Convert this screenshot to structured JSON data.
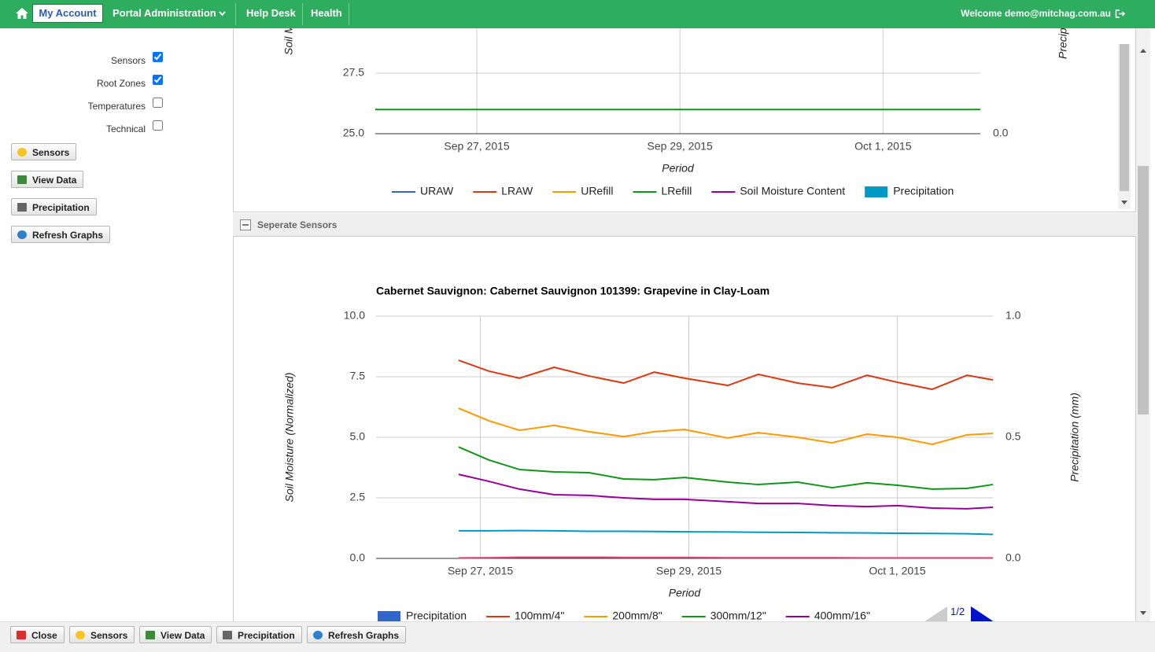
{
  "nav": {
    "items": [
      "My Account",
      "Portal Administration",
      "Help Desk",
      "Health"
    ],
    "welcome": "Welcome demo@mitchag.com.au"
  },
  "sidebar": {
    "options": [
      {
        "label": "Sensors",
        "checked": true
      },
      {
        "label": "Root Zones",
        "checked": true
      },
      {
        "label": "Temperatures",
        "checked": false
      },
      {
        "label": "Technical",
        "checked": false
      }
    ],
    "buttons": [
      "Sensors",
      "View Data",
      "Precipitation",
      "Refresh Graphs"
    ]
  },
  "section_title": "Seperate Sensors",
  "pager": "1/2",
  "toolbar": [
    "Close",
    "Sensors",
    "View Data",
    "Precipitation",
    "Refresh Graphs"
  ],
  "chart_data": [
    {
      "type": "line",
      "x_label": "Period",
      "y_label": "Soil Moisture (Normalized)",
      "y2_label": "Precipitation (mm)",
      "xlim": [
        "2015-09-26T00:00",
        "2015-10-01T23:00"
      ],
      "xticks": [
        {
          "value": "2015-09-27T00:00",
          "label": "Sep 27, 2015"
        },
        {
          "value": "2015-09-29T00:00",
          "label": "Sep 29, 2015"
        },
        {
          "value": "2015-10-01T00:00",
          "label": "Oct 1, 2015"
        }
      ],
      "ylim": [
        25,
        30
      ],
      "yticks": [
        {
          "value": 25,
          "label": "25.0"
        },
        27.5
      ],
      "y2lim": [
        0,
        1
      ],
      "y2ticks": [
        {
          "value": 0,
          "label": "0.0"
        }
      ],
      "grid": true,
      "series": [
        {
          "name": "URAW",
          "color": "#3366cc"
        },
        {
          "name": "LRAW",
          "color": "#dc3912"
        },
        {
          "name": "URefill",
          "color": "#ff9900"
        },
        {
          "name": "LRefill",
          "color": "#109618",
          "x": [
            "2015-09-26T00:00",
            "2015-10-01T23:00"
          ],
          "values": [
            26,
            26
          ]
        },
        {
          "name": "Soil Moisture Content",
          "color": "#990099"
        },
        {
          "name": "Precipitation",
          "color": "#0099c6",
          "type": "bar",
          "axis": "y2"
        }
      ]
    },
    {
      "type": "line",
      "title": "Cabernet Sauvignon: Cabernet Sauvignon 101399: Grapevine in Clay-Loam",
      "x_label": "Period",
      "y_label": "Soil Moisture (Normalized)",
      "y2_label": "Precipitation (mm)",
      "xlim": [
        "2015-09-26T00:00",
        "2015-10-01T22:00"
      ],
      "xticks": [
        {
          "value": "2015-09-27T00:00",
          "label": "Sep 27, 2015"
        },
        {
          "value": "2015-09-29T00:00",
          "label": "Sep 29, 2015"
        },
        {
          "value": "2015-10-01T00:00",
          "label": "Oct 1, 2015"
        }
      ],
      "ylim": [
        0,
        10
      ],
      "yticks": [
        {
          "value": 0,
          "label": "0.0"
        },
        2.5,
        {
          "value": 5,
          "label": "5.0"
        },
        7.5,
        {
          "value": 10,
          "label": "10.0"
        }
      ],
      "y2lim": [
        0,
        1
      ],
      "y2ticks": [
        {
          "value": 0,
          "label": "0.0"
        },
        0.5,
        {
          "value": 1,
          "label": "1.0"
        }
      ],
      "grid": true,
      "x": [
        "2015-09-26T19:00",
        "2015-09-27T02:00",
        "2015-09-27T09:00",
        "2015-09-27T17:00",
        "2015-09-28T01:00",
        "2015-09-28T09:00",
        "2015-09-28T16:00",
        "2015-09-28T23:00",
        "2015-09-29T09:00",
        "2015-09-29T16:00",
        "2015-09-30T01:00",
        "2015-09-30T09:00",
        "2015-09-30T17:00",
        "2015-10-01T00:00",
        "2015-10-01T08:00",
        "2015-10-01T16:00",
        "2015-10-01T22:00"
      ],
      "series": [
        {
          "name": "Precipitation",
          "color": "#3366cc",
          "type": "bar",
          "axis": "y2"
        },
        {
          "name": "100mm/4\"",
          "color": "#dc3912",
          "values": [
            8.18,
            7.73,
            7.44,
            7.89,
            7.53,
            7.24,
            7.69,
            7.44,
            7.14,
            7.6,
            7.24,
            7.05,
            7.56,
            7.27,
            6.98,
            7.56,
            7.37
          ]
        },
        {
          "name": "200mm/8\"",
          "color": "#ff9900",
          "values": [
            6.2,
            5.68,
            5.29,
            5.49,
            5.23,
            5.03,
            5.23,
            5.32,
            4.97,
            5.19,
            5.0,
            4.77,
            5.13,
            5.0,
            4.71,
            5.1,
            5.16
          ]
        },
        {
          "name": "300mm/12\"",
          "color": "#109618",
          "values": [
            4.6,
            4.06,
            3.67,
            3.57,
            3.54,
            3.28,
            3.25,
            3.34,
            3.15,
            3.05,
            3.15,
            2.92,
            3.12,
            3.02,
            2.86,
            2.89,
            3.05
          ]
        },
        {
          "name": "400mm/16\"",
          "color": "#990099",
          "values": [
            3.47,
            3.18,
            2.86,
            2.63,
            2.6,
            2.5,
            2.44,
            2.44,
            2.34,
            2.27,
            2.27,
            2.18,
            2.14,
            2.18,
            2.08,
            2.05,
            2.11
          ]
        },
        {
          "color": "#0099c6",
          "values": [
            1.14,
            1.14,
            1.15,
            1.14,
            1.12,
            1.12,
            1.11,
            1.1,
            1.09,
            1.08,
            1.07,
            1.06,
            1.05,
            1.04,
            1.03,
            1.02,
            0.99
          ]
        },
        {
          "color": "#dd4477",
          "values": [
            0.02,
            0.03,
            0.05,
            0.05,
            0.05,
            0.04,
            0.04,
            0.04,
            0.03,
            0.03,
            0.03,
            0.03,
            0.02,
            0.02,
            0.02,
            0.02,
            0.02
          ]
        }
      ]
    }
  ]
}
